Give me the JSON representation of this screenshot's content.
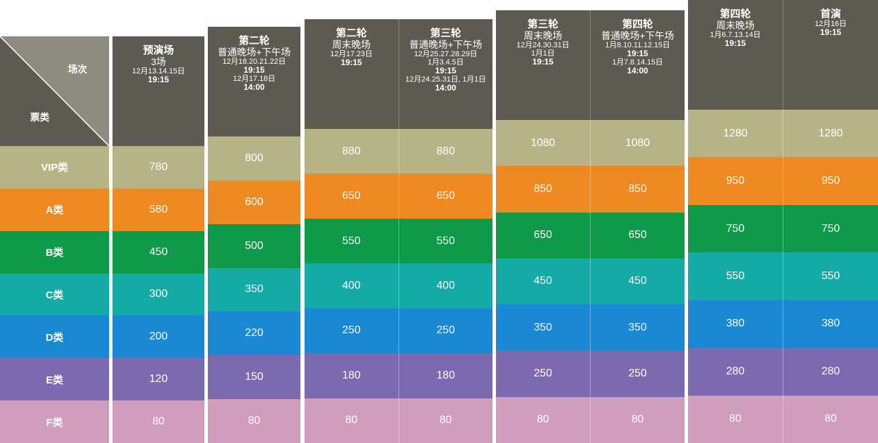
{
  "corner": {
    "top_label": "场次",
    "bottom_label": "票类"
  },
  "colors": {
    "header": "#5d5a52",
    "vip": "#b6b487",
    "a": "#ee8a21",
    "b": "#0f9a4a",
    "c": "#14aba6",
    "d": "#1a88d3",
    "e": "#7c6ab1",
    "f": "#d19dbd"
  },
  "categories": [
    "VIP类",
    "A类",
    "B类",
    "C类",
    "D类",
    "E类",
    "F类"
  ],
  "blocks": [
    {
      "columns": [
        {
          "lines": [
            {
              "t": "title",
              "v": "预演场"
            },
            {
              "t": "sub",
              "v": "3场"
            },
            {
              "t": "date",
              "v": "12月13.14.15日"
            },
            {
              "t": "time",
              "v": "19:15"
            }
          ],
          "prices": [
            "780",
            "580",
            "450",
            "300",
            "200",
            "120",
            "80"
          ]
        }
      ]
    },
    {
      "columns": [
        {
          "lines": [
            {
              "t": "title",
              "v": "第二轮"
            },
            {
              "t": "sub",
              "v": "普通晚场+下午场"
            },
            {
              "t": "date",
              "v": "12月18.20.21.22日"
            },
            {
              "t": "time",
              "v": "19:15"
            },
            {
              "t": "date",
              "v": "12月17.18日"
            },
            {
              "t": "time",
              "v": "14:00"
            }
          ],
          "prices": [
            "800",
            "600",
            "500",
            "350",
            "220",
            "150",
            "80"
          ]
        }
      ]
    },
    {
      "columns": [
        {
          "lines": [
            {
              "t": "title",
              "v": "第二轮"
            },
            {
              "t": "sub",
              "v": "周末晚场"
            },
            {
              "t": "date",
              "v": "12月17.23日"
            },
            {
              "t": "time",
              "v": "19:15"
            }
          ],
          "prices": [
            "880",
            "650",
            "550",
            "400",
            "250",
            "180",
            "80"
          ]
        },
        {
          "lines": [
            {
              "t": "title",
              "v": "第三轮"
            },
            {
              "t": "sub",
              "v": "普通晚场+下午场"
            },
            {
              "t": "date",
              "v": "12月25.27.28.29日"
            },
            {
              "t": "date",
              "v": "1月3.4.5日"
            },
            {
              "t": "time",
              "v": "19:15"
            },
            {
              "t": "date",
              "v": "12月24.25.31日, 1月1日"
            },
            {
              "t": "time",
              "v": "14:00"
            }
          ],
          "prices": [
            "880",
            "650",
            "550",
            "400",
            "250",
            "180",
            "80"
          ]
        }
      ]
    },
    {
      "columns": [
        {
          "lines": [
            {
              "t": "title",
              "v": "第三轮"
            },
            {
              "t": "sub",
              "v": "周末晚场"
            },
            {
              "t": "date",
              "v": "12月24.30.31日"
            },
            {
              "t": "date",
              "v": "1月1日"
            },
            {
              "t": "time",
              "v": "19:15"
            }
          ],
          "prices": [
            "1080",
            "850",
            "650",
            "450",
            "350",
            "250",
            "80"
          ]
        },
        {
          "lines": [
            {
              "t": "title",
              "v": "第四轮"
            },
            {
              "t": "sub",
              "v": "普通晚场+下午场"
            },
            {
              "t": "date",
              "v": "1月8.10.11.12.15日"
            },
            {
              "t": "time",
              "v": "19:15"
            },
            {
              "t": "date",
              "v": "1月7.8.14.15日"
            },
            {
              "t": "time",
              "v": "14:00"
            }
          ],
          "prices": [
            "1080",
            "850",
            "650",
            "450",
            "350",
            "250",
            "80"
          ]
        }
      ]
    },
    {
      "columns": [
        {
          "lines": [
            {
              "t": "title",
              "v": "第四轮"
            },
            {
              "t": "sub",
              "v": "周末晚场"
            },
            {
              "t": "date",
              "v": "1月6.7.13.14日"
            },
            {
              "t": "time",
              "v": "19:15"
            }
          ],
          "prices": [
            "1280",
            "950",
            "750",
            "550",
            "380",
            "280",
            "80"
          ]
        },
        {
          "lines": [
            {
              "t": "title",
              "v": "首演"
            },
            {
              "t": "date",
              "v": "12月16日"
            },
            {
              "t": "time",
              "v": "19:15"
            }
          ],
          "prices": [
            "1280",
            "950",
            "750",
            "550",
            "380",
            "280",
            "80"
          ]
        }
      ]
    }
  ]
}
